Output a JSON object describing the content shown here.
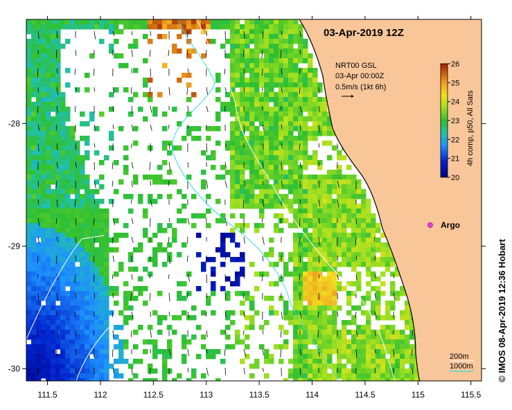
{
  "title": "03-Apr-2019 12Z",
  "vectors_legend": {
    "line1": "NRT00 GSL",
    "line2": "03-Apr 00:00Z",
    "line3": "0.5m/s (1kt 6h)"
  },
  "colorbar": {
    "label": "4h comp, p50, All Sats",
    "ticks": [
      "20",
      "21",
      "22",
      "23",
      "24",
      "25",
      "26"
    ],
    "min": 20,
    "max": 26
  },
  "argo": {
    "label": "Argo",
    "color": "#e040e0"
  },
  "contours_legend": {
    "c200": "200m",
    "c1000": "1000m"
  },
  "x_axis": {
    "ticks": [
      "111.5",
      "112",
      "112.5",
      "113",
      "113.5",
      "114",
      "114.5",
      "115",
      "115.5"
    ],
    "lon_min": 111.3,
    "lon_max": 115.6
  },
  "y_axis": {
    "ticks": [
      "-28",
      "-29",
      "-30"
    ],
    "lat_min": -30.1,
    "lat_max": -27.15
  },
  "credit": "© IMOS 08-Apr-2019 12:36 Hobart",
  "colors": {
    "land": "#f9c69a",
    "no_data": "#ffffff",
    "contour_200": "#ffffff",
    "contour_1000": "#33dddd"
  }
}
